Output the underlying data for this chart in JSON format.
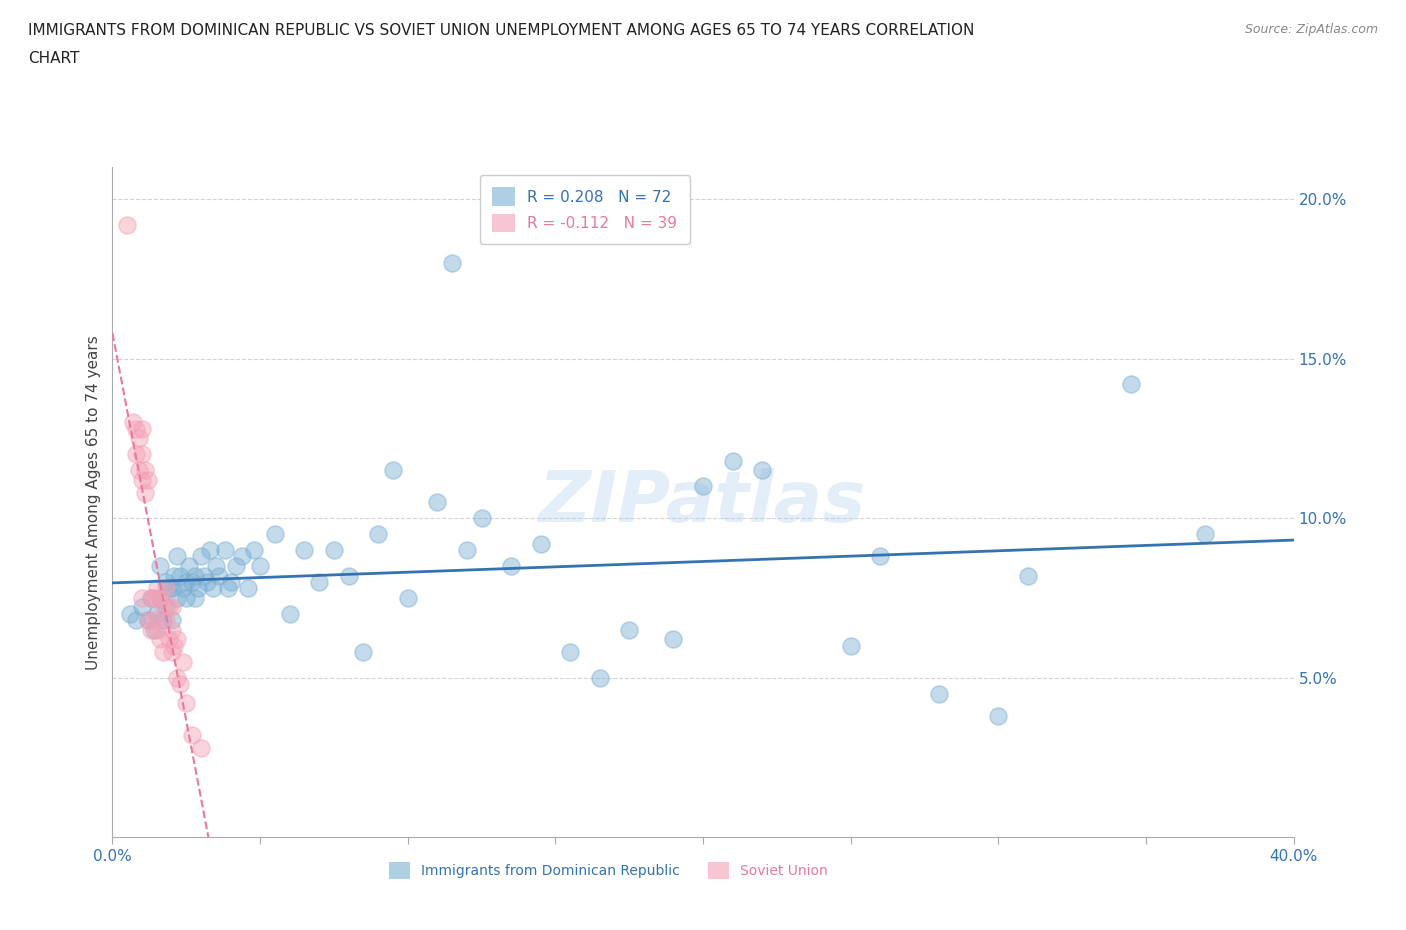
{
  "title_line1": "IMMIGRANTS FROM DOMINICAN REPUBLIC VS SOVIET UNION UNEMPLOYMENT AMONG AGES 65 TO 74 YEARS CORRELATION",
  "title_line2": "CHART",
  "source": "Source: ZipAtlas.com",
  "ylabel": "Unemployment Among Ages 65 to 74 years",
  "xlim": [
    0.0,
    0.4
  ],
  "ylim": [
    0.0,
    0.21
  ],
  "yticks": [
    0.05,
    0.1,
    0.15,
    0.2
  ],
  "ytick_labels": [
    "5.0%",
    "10.0%",
    "15.0%",
    "20.0%"
  ],
  "xticks": [
    0.0,
    0.05,
    0.1,
    0.15,
    0.2,
    0.25,
    0.3,
    0.35,
    0.4
  ],
  "xtick_labels": [
    "0.0%",
    "",
    "",
    "",
    "",
    "",
    "",
    "",
    "40.0%"
  ],
  "blue_color": "#7BAFD4",
  "pink_color": "#F4A0B5",
  "blue_line_color": "#3572B0",
  "pink_line_color": "#E8799A",
  "legend_r_blue": "R = 0.208",
  "legend_n_blue": "N = 72",
  "legend_r_pink": "R = -0.112",
  "legend_n_pink": "N = 39",
  "legend_label_blue": "Immigrants from Dominican Republic",
  "legend_label_pink": "Soviet Union",
  "blue_x": [
    0.006,
    0.008,
    0.01,
    0.012,
    0.013,
    0.014,
    0.015,
    0.016,
    0.016,
    0.017,
    0.018,
    0.018,
    0.019,
    0.02,
    0.02,
    0.021,
    0.022,
    0.022,
    0.023,
    0.024,
    0.025,
    0.025,
    0.026,
    0.027,
    0.028,
    0.028,
    0.029,
    0.03,
    0.031,
    0.032,
    0.033,
    0.034,
    0.035,
    0.036,
    0.038,
    0.039,
    0.04,
    0.042,
    0.044,
    0.046,
    0.048,
    0.05,
    0.055,
    0.06,
    0.065,
    0.07,
    0.075,
    0.08,
    0.085,
    0.09,
    0.095,
    0.1,
    0.11,
    0.115,
    0.12,
    0.125,
    0.135,
    0.145,
    0.155,
    0.165,
    0.175,
    0.19,
    0.2,
    0.21,
    0.22,
    0.25,
    0.26,
    0.28,
    0.3,
    0.31,
    0.345,
    0.37
  ],
  "blue_y": [
    0.07,
    0.068,
    0.072,
    0.068,
    0.075,
    0.065,
    0.07,
    0.085,
    0.075,
    0.068,
    0.08,
    0.072,
    0.078,
    0.078,
    0.068,
    0.082,
    0.088,
    0.075,
    0.082,
    0.078,
    0.08,
    0.075,
    0.085,
    0.08,
    0.082,
    0.075,
    0.078,
    0.088,
    0.082,
    0.08,
    0.09,
    0.078,
    0.085,
    0.082,
    0.09,
    0.078,
    0.08,
    0.085,
    0.088,
    0.078,
    0.09,
    0.085,
    0.095,
    0.07,
    0.09,
    0.08,
    0.09,
    0.082,
    0.058,
    0.095,
    0.115,
    0.075,
    0.105,
    0.18,
    0.09,
    0.1,
    0.085,
    0.092,
    0.058,
    0.05,
    0.065,
    0.062,
    0.11,
    0.118,
    0.115,
    0.06,
    0.088,
    0.045,
    0.038,
    0.082,
    0.142,
    0.095
  ],
  "pink_x": [
    0.005,
    0.007,
    0.008,
    0.008,
    0.009,
    0.009,
    0.01,
    0.01,
    0.01,
    0.01,
    0.011,
    0.011,
    0.012,
    0.012,
    0.013,
    0.013,
    0.014,
    0.014,
    0.015,
    0.015,
    0.016,
    0.016,
    0.017,
    0.017,
    0.018,
    0.018,
    0.019,
    0.019,
    0.02,
    0.02,
    0.02,
    0.021,
    0.022,
    0.022,
    0.023,
    0.024,
    0.025,
    0.027,
    0.03
  ],
  "pink_y": [
    0.192,
    0.13,
    0.128,
    0.12,
    0.125,
    0.115,
    0.128,
    0.12,
    0.112,
    0.075,
    0.115,
    0.108,
    0.112,
    0.068,
    0.075,
    0.065,
    0.075,
    0.068,
    0.078,
    0.065,
    0.075,
    0.062,
    0.072,
    0.058,
    0.078,
    0.068,
    0.072,
    0.062,
    0.072,
    0.065,
    0.058,
    0.06,
    0.062,
    0.05,
    0.048,
    0.055,
    0.042,
    0.032,
    0.028
  ],
  "watermark": "ZIPatlas",
  "background_color": "#FFFFFF",
  "grid_color": "#D3D3D3",
  "axis_color": "#AAAAAA"
}
